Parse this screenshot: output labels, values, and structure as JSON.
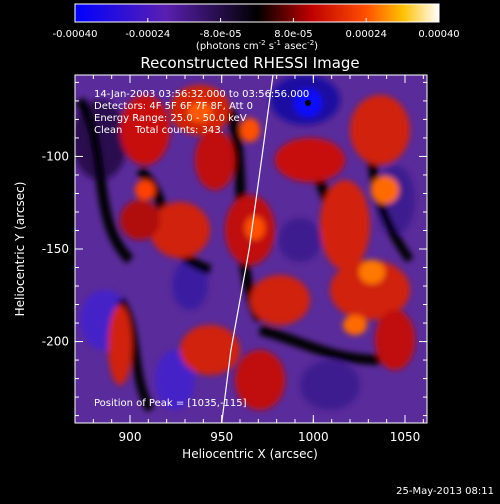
{
  "colorbar": {
    "ticks": [
      "-0.00040",
      "-0.00024",
      "-8.0e-05",
      "8.0e-05",
      "0.00024",
      "0.00040"
    ],
    "units_main": "(photons cm",
    "units_exp1": "-2",
    "units_mid": " s",
    "units_exp2": "-1",
    "units_mid2": " asec",
    "units_exp3": "-2",
    "units_end": ")"
  },
  "title": "Reconstructed RHESSI Image",
  "info": {
    "line1": "14-Jan-2003 03:56:32.000 to 03:56:56.000",
    "line2": "Detectors: 4F 5F 6F 7F 8F, Att 0",
    "line3": "Energy Range: 25.0 - 50.0 keV",
    "line4": "Clean    Total counts: 343.",
    "peak": "Position of Peak = [1035,-115]"
  },
  "axes": {
    "xlabel": "Heliocentric X (arcsec)",
    "ylabel": "Heliocentric Y (arcsec)",
    "xticks": [
      "900",
      "950",
      "1000",
      "1050"
    ],
    "yticks": [
      "-100",
      "-150",
      "-200"
    ]
  },
  "timestamp": "25-May-2013 08:11",
  "chart_data": {
    "type": "heatmap",
    "title": "Reconstructed RHESSI Image",
    "xlabel": "Heliocentric X (arcsec)",
    "ylabel": "Heliocentric Y (arcsec)",
    "xlim": [
      870,
      1062
    ],
    "ylim": [
      -244,
      -56
    ],
    "colorbar_range": [
      -0.0004,
      0.0004
    ],
    "peak": [
      1035,
      -115
    ],
    "limb_curve": [
      [
        950,
        -244
      ],
      [
        955,
        -205
      ],
      [
        965,
        -150
      ],
      [
        972,
        -100
      ],
      [
        978,
        -56
      ]
    ]
  }
}
